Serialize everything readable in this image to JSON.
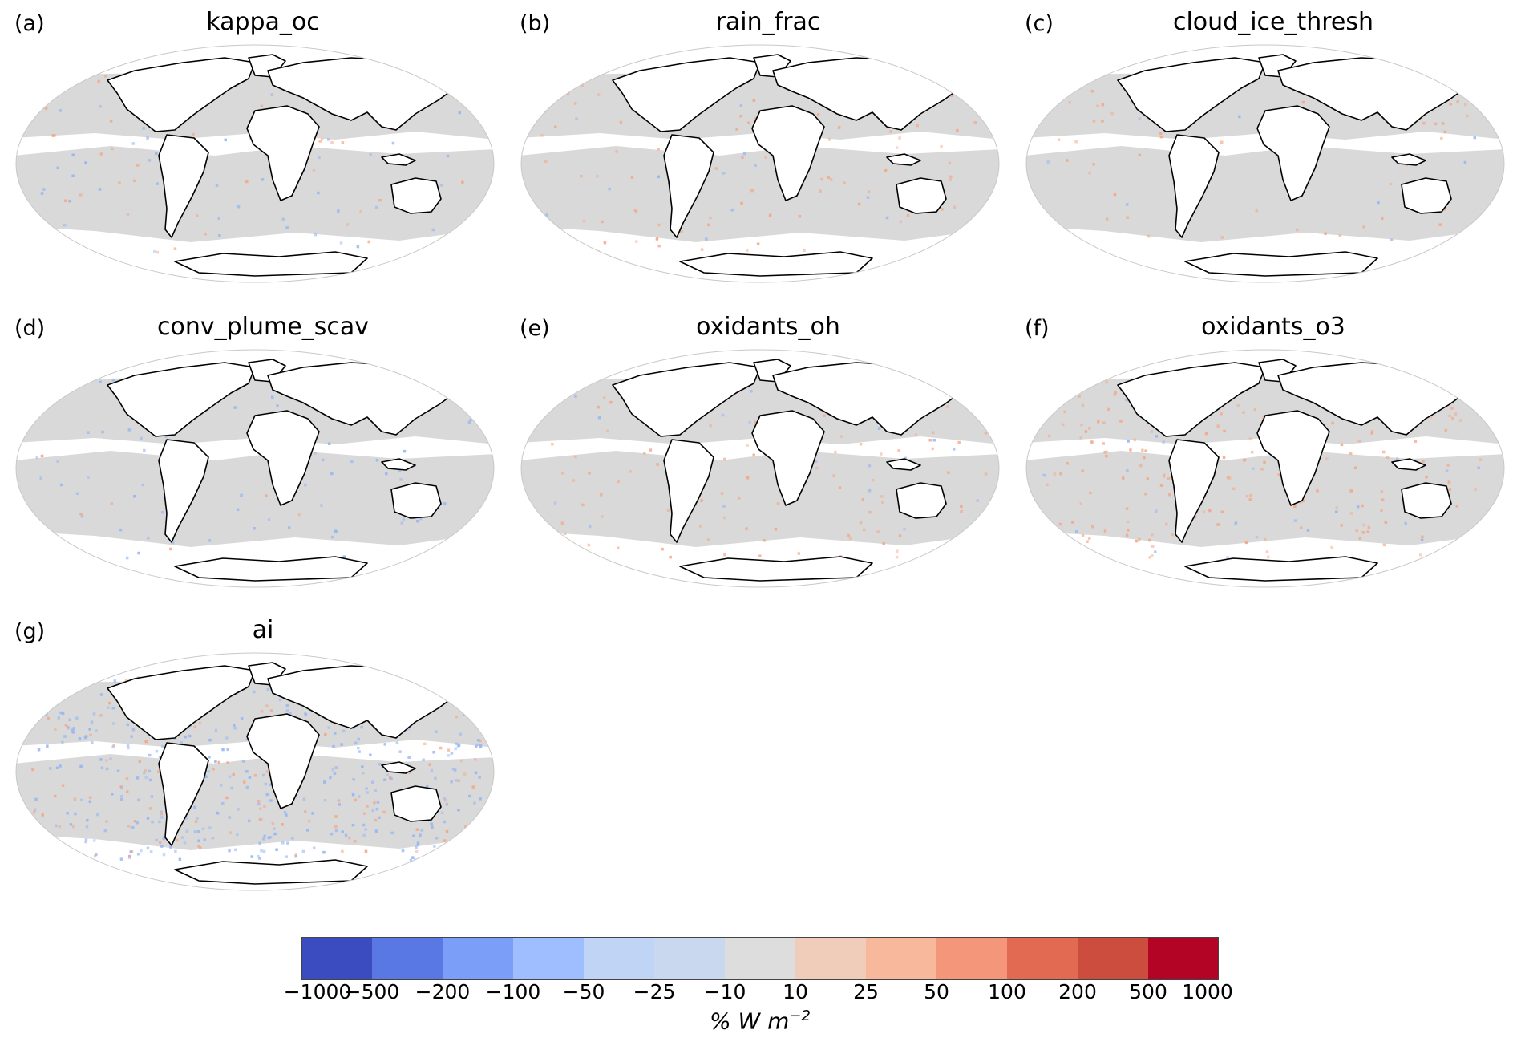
{
  "panels": [
    {
      "letter": "(a)",
      "title": "kappa_oc"
    },
    {
      "letter": "(b)",
      "title": "rain_frac"
    },
    {
      "letter": "(c)",
      "title": "cloud_ice_thresh"
    },
    {
      "letter": "(d)",
      "title": "conv_plume_scav"
    },
    {
      "letter": "(e)",
      "title": "oxidants_oh"
    },
    {
      "letter": "(f)",
      "title": "oxidants_o3"
    },
    {
      "letter": "(g)",
      "title": "ai"
    }
  ],
  "colorbar": {
    "ticks": [
      "−1000",
      "−500",
      "−200",
      "−100",
      "−50",
      "−25",
      "−10",
      "10",
      "25",
      "50",
      "100",
      "200",
      "500",
      "1000"
    ],
    "colors": [
      "#3b4cc0",
      "#5a78e4",
      "#7b9ff9",
      "#9ebeff",
      "#c0d4f5",
      "#c9d7ef",
      "#dddddd",
      "#f0cdbb",
      "#f7b89c",
      "#f3967a",
      "#e26952",
      "#cc4d3e",
      "#b40426"
    ],
    "label": "% W m",
    "label_exp": "−2"
  },
  "colors": {
    "ocean_gray": "#d9d9d9",
    "positive": "#f4a582",
    "negative": "#92b4f4",
    "coast": "#000000"
  }
}
